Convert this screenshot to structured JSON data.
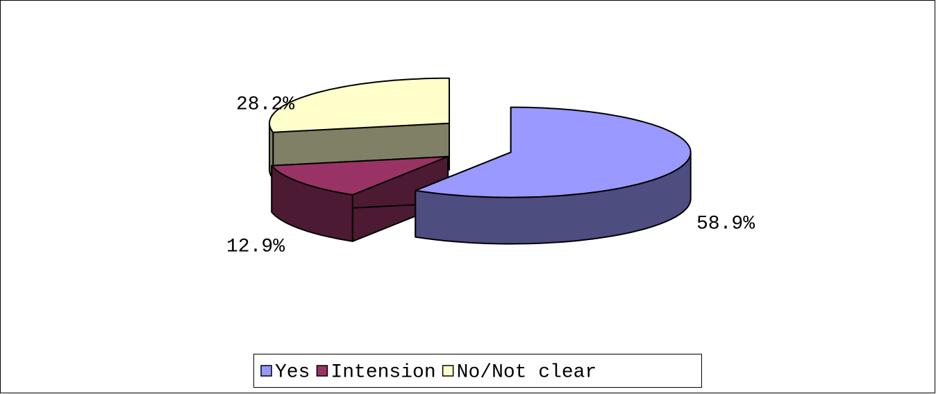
{
  "chart_data": {
    "type": "pie3d",
    "categories": [
      "Yes",
      "Intension",
      "No/Not clear"
    ],
    "values": [
      58.9,
      12.9,
      28.2
    ],
    "value_labels": [
      "58.9%",
      "12.9%",
      "28.2%"
    ],
    "colors": [
      "#9999ff",
      "#993366",
      "#ffffcc"
    ],
    "side_colors": [
      "#4d4d80",
      "#4d1a33",
      "#808066"
    ],
    "legend": "bottom"
  }
}
